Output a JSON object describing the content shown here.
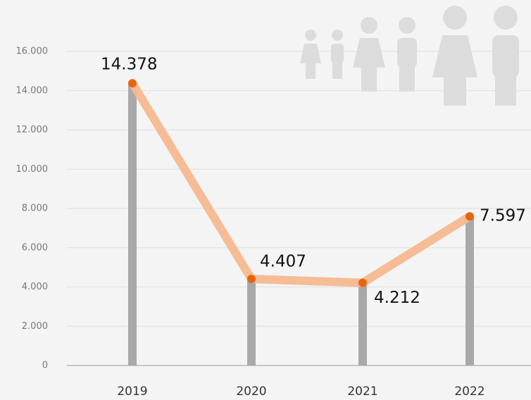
{
  "chart_data": {
    "type": "line",
    "categories": [
      "2019",
      "2020",
      "2021",
      "2022"
    ],
    "values": [
      14378,
      4407,
      4212,
      7597
    ],
    "value_labels": [
      "14.378",
      "4.407",
      "4.212",
      "7.597"
    ],
    "color": "#f4b890",
    "marker_color": "#e8650f",
    "bar_color": "#a9a9a9",
    "ylim": [
      0,
      16000
    ],
    "yticks": [
      0,
      {
        "value": 2000,
        "label": "2.000"
      },
      {
        "value": 4000,
        "label": "4.000"
      },
      {
        "value": 6000,
        "label": "6.000"
      },
      {
        "value": 8000,
        "label": "8.000"
      },
      {
        "value": 10000,
        "label": "10.000"
      },
      {
        "value": 12000,
        "label": "12.000"
      },
      {
        "value": 14000,
        "label": "14.000"
      },
      {
        "value": 16000,
        "label": "16.000"
      }
    ],
    "grid": true
  }
}
